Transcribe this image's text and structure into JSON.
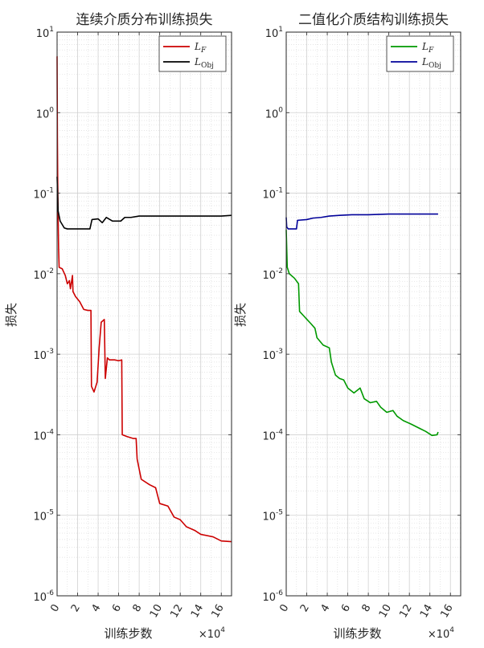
{
  "chart_data": [
    {
      "type": "line",
      "title": "连续介质分布训练损失",
      "xlabel": "训练步数",
      "ylabel": "损失",
      "x_multiplier": "×10",
      "x_multiplier_exp": "4",
      "xlim": [
        0,
        17
      ],
      "ylim": [
        1e-06,
        10
      ],
      "yscale": "log",
      "x_ticks": [
        0,
        2,
        4,
        6,
        8,
        10,
        12,
        14,
        16
      ],
      "y_ticks": [
        {
          "base": "10",
          "exp": "-6",
          "value": 1e-06
        },
        {
          "base": "10",
          "exp": "-5",
          "value": 1e-05
        },
        {
          "base": "10",
          "exp": "-4",
          "value": 0.0001
        },
        {
          "base": "10",
          "exp": "-3",
          "value": 0.001
        },
        {
          "base": "10",
          "exp": "-2",
          "value": 0.01
        },
        {
          "base": "10",
          "exp": "-1",
          "value": 0.1
        },
        {
          "base": "10",
          "exp": "0",
          "value": 1
        },
        {
          "base": "10",
          "exp": "1",
          "value": 10
        }
      ],
      "grid": true,
      "legend_position": "top-right",
      "series": [
        {
          "name": "L",
          "name_sub": "F",
          "color": "#cc0000",
          "points": [
            [
              0.0,
              5.0
            ],
            [
              0.03,
              0.5
            ],
            [
              0.06,
              0.15
            ],
            [
              0.1,
              0.05
            ],
            [
              0.15,
              0.02
            ],
            [
              0.2,
              0.012
            ],
            [
              0.5,
              0.0115
            ],
            [
              0.8,
              0.0095
            ],
            [
              1.0,
              0.0075
            ],
            [
              1.2,
              0.0082
            ],
            [
              1.3,
              0.0065
            ],
            [
              1.5,
              0.0095
            ],
            [
              1.55,
              0.006
            ],
            [
              1.8,
              0.0052
            ],
            [
              2.2,
              0.0045
            ],
            [
              2.6,
              0.0036
            ],
            [
              3.0,
              0.0035
            ],
            [
              3.3,
              0.0035
            ],
            [
              3.35,
              0.0004
            ],
            [
              3.6,
              0.00034
            ],
            [
              3.9,
              0.00045
            ],
            [
              4.1,
              0.0012
            ],
            [
              4.3,
              0.0025
            ],
            [
              4.6,
              0.0027
            ],
            [
              4.7,
              0.0005
            ],
            [
              4.9,
              0.0009
            ],
            [
              5.1,
              0.00085
            ],
            [
              5.6,
              0.00085
            ],
            [
              6.0,
              0.00083
            ],
            [
              6.3,
              0.00085
            ],
            [
              6.35,
              0.0001
            ],
            [
              6.8,
              9.5e-05
            ],
            [
              7.4,
              9e-05
            ],
            [
              7.7,
              9e-05
            ],
            [
              7.8,
              5e-05
            ],
            [
              8.2,
              2.8e-05
            ],
            [
              9.0,
              2.4e-05
            ],
            [
              9.6,
              2.2e-05
            ],
            [
              10.0,
              1.4e-05
            ],
            [
              10.8,
              1.3e-05
            ],
            [
              11.4,
              9.5e-06
            ],
            [
              12.0,
              8.8e-06
            ],
            [
              12.6,
              7.2e-06
            ],
            [
              13.4,
              6.5e-06
            ],
            [
              14.0,
              5.8e-06
            ],
            [
              15.2,
              5.4e-06
            ],
            [
              16.0,
              4.8e-06
            ],
            [
              17.0,
              4.7e-06
            ]
          ]
        },
        {
          "name": "L",
          "name_sub": "Obj",
          "color": "#000000",
          "points": [
            [
              0.0,
              0.16
            ],
            [
              0.1,
              0.06
            ],
            [
              0.3,
              0.045
            ],
            [
              0.7,
              0.037
            ],
            [
              1.0,
              0.036
            ],
            [
              3.2,
              0.036
            ],
            [
              3.4,
              0.047
            ],
            [
              4.0,
              0.048
            ],
            [
              4.4,
              0.043
            ],
            [
              4.8,
              0.05
            ],
            [
              5.4,
              0.045
            ],
            [
              6.2,
              0.045
            ],
            [
              6.6,
              0.05
            ],
            [
              7.2,
              0.05
            ],
            [
              8.0,
              0.052
            ],
            [
              10.0,
              0.052
            ],
            [
              12.0,
              0.052
            ],
            [
              14.0,
              0.052
            ],
            [
              16.0,
              0.052
            ],
            [
              17.0,
              0.053
            ]
          ]
        }
      ]
    },
    {
      "type": "line",
      "title": "二值化介质结构训练损失",
      "xlabel": "训练步数",
      "ylabel": "损失",
      "x_multiplier": "×10",
      "x_multiplier_exp": "4",
      "xlim": [
        0,
        17
      ],
      "ylim": [
        1e-06,
        10
      ],
      "yscale": "log",
      "x_ticks": [
        0,
        2,
        4,
        6,
        8,
        10,
        12,
        14,
        16
      ],
      "y_ticks": [
        {
          "base": "10",
          "exp": "-6",
          "value": 1e-06
        },
        {
          "base": "10",
          "exp": "-5",
          "value": 1e-05
        },
        {
          "base": "10",
          "exp": "-4",
          "value": 0.0001
        },
        {
          "base": "10",
          "exp": "-3",
          "value": 0.001
        },
        {
          "base": "10",
          "exp": "-2",
          "value": 0.01
        },
        {
          "base": "10",
          "exp": "-1",
          "value": 0.1
        },
        {
          "base": "10",
          "exp": "0",
          "value": 1
        },
        {
          "base": "10",
          "exp": "1",
          "value": 10
        }
      ],
      "grid": true,
      "legend_position": "top-right",
      "series": [
        {
          "name": "L",
          "name_sub": "F",
          "color": "#009900",
          "points": [
            [
              0.0,
              0.035
            ],
            [
              0.1,
              0.012
            ],
            [
              0.3,
              0.01
            ],
            [
              0.8,
              0.0088
            ],
            [
              1.2,
              0.0075
            ],
            [
              1.3,
              0.0034
            ],
            [
              1.8,
              0.0029
            ],
            [
              2.4,
              0.0024
            ],
            [
              2.8,
              0.0021
            ],
            [
              3.0,
              0.0016
            ],
            [
              3.6,
              0.0013
            ],
            [
              4.2,
              0.0012
            ],
            [
              4.4,
              0.0008
            ],
            [
              4.8,
              0.00055
            ],
            [
              5.2,
              0.0005
            ],
            [
              5.6,
              0.00048
            ],
            [
              6.0,
              0.00038
            ],
            [
              6.6,
              0.00033
            ],
            [
              7.2,
              0.00038
            ],
            [
              7.6,
              0.00028
            ],
            [
              8.2,
              0.00025
            ],
            [
              8.8,
              0.00026
            ],
            [
              9.2,
              0.00022
            ],
            [
              9.8,
              0.00019
            ],
            [
              10.4,
              0.0002
            ],
            [
              10.8,
              0.00017
            ],
            [
              11.4,
              0.00015
            ],
            [
              12.2,
              0.000135
            ],
            [
              13.0,
              0.00012
            ],
            [
              13.6,
              0.00011
            ],
            [
              14.2,
              9.8e-05
            ],
            [
              14.7,
              0.0001
            ],
            [
              14.8,
              0.000108
            ]
          ]
        },
        {
          "name": "L",
          "name_sub": "Obj",
          "color": "#000099",
          "points": [
            [
              0.0,
              0.05
            ],
            [
              0.05,
              0.038
            ],
            [
              0.2,
              0.036
            ],
            [
              1.0,
              0.036
            ],
            [
              1.1,
              0.046
            ],
            [
              2.0,
              0.047
            ],
            [
              2.6,
              0.049
            ],
            [
              3.4,
              0.05
            ],
            [
              4.2,
              0.052
            ],
            [
              5.2,
              0.053
            ],
            [
              6.4,
              0.054
            ],
            [
              8.0,
              0.054
            ],
            [
              10.0,
              0.055
            ],
            [
              12.0,
              0.055
            ],
            [
              14.8,
              0.055
            ]
          ]
        }
      ]
    }
  ]
}
